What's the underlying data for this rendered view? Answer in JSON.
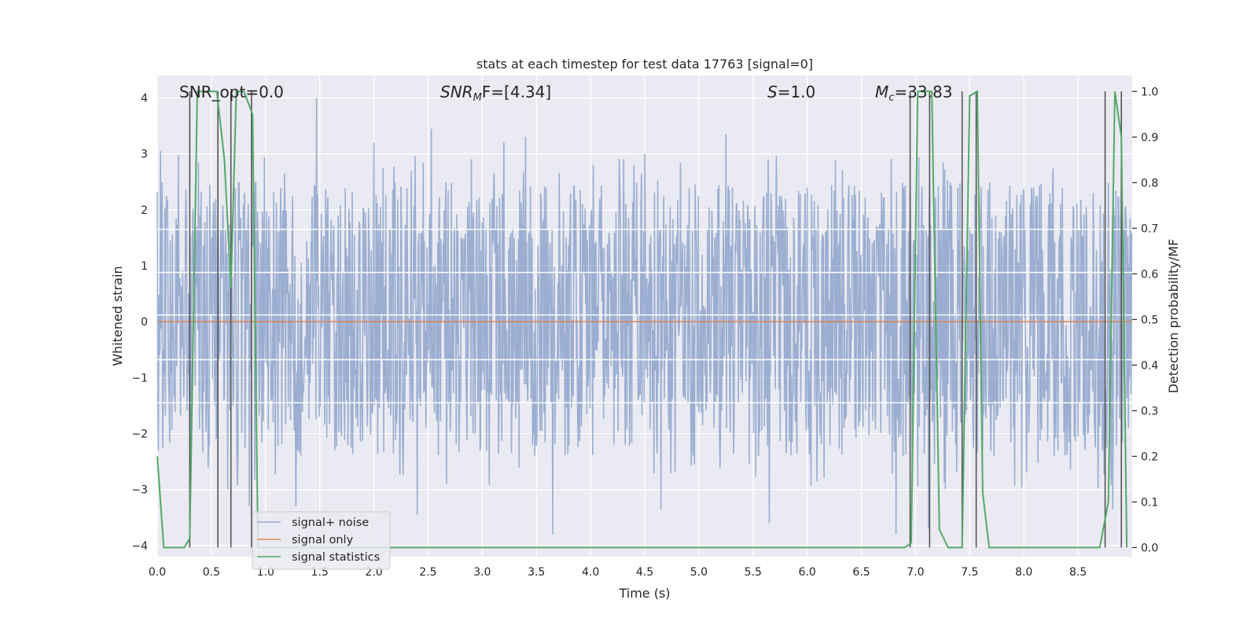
{
  "chart_data": {
    "type": "line",
    "title": "stats at each timestep for test data 17763 [signal=0]",
    "xlabel": "Time (s)",
    "ylabel_left": "Whitened strain",
    "ylabel_right": "Detection probability/MF",
    "xlim": [
      0.0,
      9.0
    ],
    "ylim_left": [
      -4.2,
      4.4
    ],
    "ylim_right": [
      -0.02,
      1.035
    ],
    "x_ticks": [
      0.0,
      0.5,
      1.0,
      1.5,
      2.0,
      2.5,
      3.0,
      3.5,
      4.0,
      4.5,
      5.0,
      5.5,
      6.0,
      6.5,
      7.0,
      7.5,
      8.0,
      8.5
    ],
    "x_tick_labels": [
      "0.0",
      "0.5",
      "1.0",
      "1.5",
      "2.0",
      "2.5",
      "3.0",
      "3.5",
      "4.0",
      "4.5",
      "5.0",
      "5.5",
      "6.0",
      "6.5",
      "7.0",
      "7.5",
      "8.0",
      "8.5"
    ],
    "y_ticks_left": [
      -4,
      -3,
      -2,
      -1,
      0,
      1,
      2,
      3,
      4
    ],
    "y_tick_labels_left": [
      "−4",
      "−3",
      "−2",
      "−1",
      "0",
      "1",
      "2",
      "3",
      "4"
    ],
    "y_ticks_right": [
      0.0,
      0.1,
      0.2,
      0.3,
      0.4,
      0.5,
      0.6,
      0.7,
      0.8,
      0.9,
      1.0
    ],
    "y_tick_labels_right": [
      "0.0",
      "0.1",
      "0.2",
      "0.3",
      "0.4",
      "0.5",
      "0.6",
      "0.7",
      "0.8",
      "0.9",
      "1.0"
    ],
    "annotations": {
      "snr_opt": "SNR_opt=0.0",
      "snr_mf_base": "SNR",
      "snr_mf_sub": "M",
      "snr_mf_rest": "F=[4.34]",
      "s_var": "S",
      "s_rest": "=1.0",
      "mc_var": "M",
      "mc_sub": "c",
      "mc_rest": "=33.83"
    },
    "legend": {
      "placement": "lower-left",
      "entries": [
        "signal+ noise",
        "signal only",
        "signal statistics"
      ]
    },
    "series": [
      {
        "name": "signal+ noise",
        "axis": "left",
        "color": "#4c72b0",
        "opacity": 0.5,
        "style": "noise",
        "core_band": [
          -1.5,
          1.7
        ],
        "spike_range": [
          -3.8,
          4.0
        ],
        "peaks": [
          [
            0.03,
            3.05
          ],
          [
            1.47,
            4.0
          ],
          [
            2.0,
            3.2
          ],
          [
            2.53,
            3.45
          ],
          [
            3.2,
            3.2
          ],
          [
            3.4,
            3.3
          ],
          [
            4.5,
            3.0
          ],
          [
            5.25,
            3.35
          ],
          [
            0.65,
            -3.0
          ],
          [
            0.85,
            -3.3
          ],
          [
            1.28,
            -3.3
          ],
          [
            2.4,
            -3.45
          ],
          [
            3.65,
            -3.8
          ],
          [
            4.65,
            -3.35
          ],
          [
            5.65,
            -3.6
          ],
          [
            6.82,
            -3.8
          ],
          [
            7.12,
            -3.7
          ],
          [
            8.82,
            -3.35
          ]
        ]
      },
      {
        "name": "signal only",
        "axis": "left",
        "color": "#dd8452",
        "x": [
          0.0,
          9.0
        ],
        "y": [
          0.0,
          0.0
        ]
      },
      {
        "name": "signal statistics",
        "axis": "right",
        "color": "#55a868",
        "x": [
          0.0,
          0.06,
          0.25,
          0.3,
          0.37,
          0.55,
          0.62,
          0.68,
          0.73,
          0.8,
          0.88,
          0.93,
          1.0,
          3.0,
          6.9,
          6.96,
          7.02,
          7.15,
          7.22,
          7.3,
          7.43,
          7.5,
          7.57,
          7.62,
          7.68,
          8.7,
          8.78,
          8.84,
          8.9,
          8.95
        ],
        "y": [
          0.2,
          0.0,
          0.0,
          0.02,
          1.0,
          1.0,
          0.85,
          0.57,
          1.0,
          1.0,
          0.95,
          0.0,
          0.0,
          0.0,
          0.0,
          0.01,
          1.0,
          1.0,
          0.04,
          0.0,
          0.0,
          0.99,
          1.0,
          0.12,
          0.0,
          0.0,
          0.1,
          1.0,
          0.9,
          0.0
        ]
      }
    ],
    "event_markers": {
      "color": "#555555",
      "axis": "right",
      "y_range": [
        0.0,
        1.0
      ],
      "x": [
        0.3,
        0.56,
        0.68,
        0.87,
        6.95,
        7.13,
        7.43,
        7.56,
        8.75,
        8.9
      ]
    },
    "horizontal_lines": {
      "axis": "left",
      "color": "#ffffff",
      "y": [
        1.65,
        0.88,
        0.12,
        -0.68,
        -1.45
      ]
    }
  }
}
